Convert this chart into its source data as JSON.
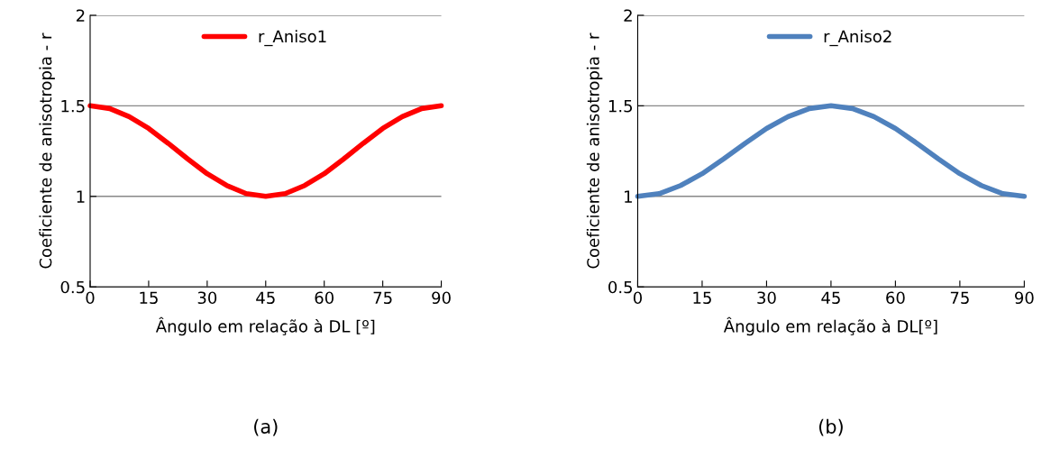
{
  "chart_data": [
    {
      "type": "line",
      "xlabel": "Ângulo em relação à DL [º]",
      "ylabel": "Coeficiente de anisotropia - r",
      "x": [
        0,
        5,
        10,
        15,
        20,
        25,
        30,
        35,
        40,
        45,
        50,
        55,
        60,
        65,
        70,
        75,
        80,
        85,
        90
      ],
      "series": [
        {
          "name": "r_Aniso1",
          "color": "#ff0000",
          "values": [
            1.5,
            1.485,
            1.44,
            1.375,
            1.293,
            1.207,
            1.125,
            1.06,
            1.015,
            1.0,
            1.015,
            1.06,
            1.125,
            1.207,
            1.293,
            1.375,
            1.44,
            1.485,
            1.5
          ]
        }
      ],
      "xlim": [
        0,
        90
      ],
      "xticks": [
        0,
        15,
        30,
        45,
        60,
        75,
        90
      ],
      "ylim": [
        0.5,
        2
      ],
      "yticks": [
        0.5,
        1,
        1.5,
        2
      ],
      "grid": "y",
      "legend": "top",
      "marker": "none",
      "line_style": "solid",
      "annotations": [
        "(a)"
      ]
    },
    {
      "type": "line",
      "xlabel": "Ângulo em relação à DL[º]",
      "ylabel": "Coeficiente de anisotropia - r",
      "x": [
        0,
        5,
        10,
        15,
        20,
        25,
        30,
        35,
        40,
        45,
        50,
        55,
        60,
        65,
        70,
        75,
        80,
        85,
        90
      ],
      "series": [
        {
          "name": "r_Aniso2",
          "color": "#4f81bd",
          "values": [
            1.0,
            1.015,
            1.06,
            1.125,
            1.207,
            1.293,
            1.375,
            1.44,
            1.485,
            1.5,
            1.485,
            1.44,
            1.375,
            1.293,
            1.207,
            1.125,
            1.06,
            1.015,
            1.0
          ]
        }
      ],
      "xlim": [
        0,
        90
      ],
      "xticks": [
        0,
        15,
        30,
        45,
        60,
        75,
        90
      ],
      "ylim": [
        0.5,
        2
      ],
      "yticks": [
        0.5,
        1,
        1.5,
        2
      ],
      "grid": "y",
      "legend": "top",
      "marker": "none",
      "line_style": "solid",
      "annotations": [
        "(b)"
      ]
    }
  ]
}
